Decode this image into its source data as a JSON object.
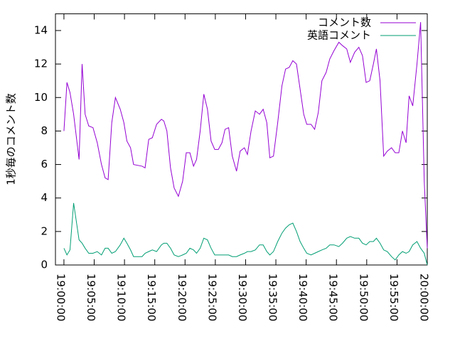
{
  "chart_data": {
    "type": "line",
    "ylabel": "1秒毎のコメント数",
    "x": [
      "19:00:00",
      "19:00:30",
      "19:01:00",
      "19:01:36",
      "19:02:30",
      "19:03:00",
      "19:03:30",
      "19:04:06",
      "19:04:48",
      "19:05:30",
      "19:06:12",
      "19:06:48",
      "19:07:18",
      "19:07:54",
      "19:08:30",
      "19:09:18",
      "19:09:54",
      "19:10:24",
      "19:11:00",
      "19:11:30",
      "19:12:54",
      "19:13:24",
      "19:14:00",
      "19:14:36",
      "19:15:18",
      "19:16:06",
      "19:16:30",
      "19:17:00",
      "19:17:36",
      "19:18:12",
      "19:18:54",
      "19:19:36",
      "19:20:12",
      "19:20:48",
      "19:21:24",
      "19:21:54",
      "19:22:30",
      "19:23:06",
      "19:23:42",
      "19:24:18",
      "19:24:54",
      "19:25:30",
      "19:26:06",
      "19:26:36",
      "19:27:12",
      "19:27:48",
      "19:28:30",
      "19:29:06",
      "19:29:48",
      "19:30:18",
      "19:30:54",
      "19:31:36",
      "19:32:18",
      "19:32:54",
      "19:33:30",
      "19:34:00",
      "19:34:36",
      "19:35:18",
      "19:36:00",
      "19:36:36",
      "19:37:12",
      "19:37:48",
      "19:38:24",
      "19:39:00",
      "19:39:36",
      "19:40:06",
      "19:40:48",
      "19:41:24",
      "19:42:00",
      "19:42:36",
      "19:43:18",
      "19:43:54",
      "19:44:36",
      "19:45:24",
      "19:46:00",
      "19:46:42",
      "19:47:18",
      "19:48:00",
      "19:48:42",
      "19:49:18",
      "19:49:54",
      "19:50:30",
      "19:51:06",
      "19:51:36",
      "19:52:12",
      "19:52:48",
      "19:53:24",
      "19:54:06",
      "19:54:42",
      "19:55:18",
      "19:55:54",
      "19:56:30",
      "19:57:00",
      "19:57:36",
      "19:58:18",
      "19:58:54",
      "19:59:30",
      "20:00:00"
    ],
    "series": [
      {
        "name": "コメント数",
        "color": "#9400d3",
        "values": [
          8.0,
          10.9,
          10.3,
          9.0,
          6.3,
          12.0,
          9.0,
          8.3,
          8.2,
          7.3,
          6.0,
          5.2,
          5.1,
          8.5,
          10.0,
          9.3,
          8.5,
          7.4,
          7.0,
          6.0,
          5.9,
          5.8,
          7.5,
          7.6,
          8.4,
          8.7,
          8.6,
          8.0,
          5.8,
          4.6,
          4.1,
          5.0,
          6.7,
          6.7,
          5.9,
          6.3,
          8.0,
          10.2,
          9.3,
          7.4,
          6.9,
          6.9,
          7.3,
          8.1,
          8.2,
          6.5,
          5.6,
          6.8,
          7.0,
          6.6,
          8.0,
          9.2,
          9.0,
          9.3,
          8.5,
          6.4,
          6.5,
          8.5,
          10.7,
          11.7,
          11.8,
          12.2,
          12.0,
          10.5,
          9.0,
          8.4,
          8.4,
          8.1,
          9.1,
          11.0,
          11.5,
          12.3,
          12.8,
          13.3,
          13.1,
          12.9,
          12.1,
          12.7,
          13.0,
          12.5,
          10.9,
          11.0,
          12.0,
          12.9,
          11.0,
          6.5,
          6.8,
          7.0,
          6.7,
          6.7,
          8.0,
          7.3,
          10.1,
          9.5,
          12.0,
          14.5,
          5.0,
          1.0
        ]
      },
      {
        "name": "英語コメント",
        "color": "#009e73",
        "values": [
          1.0,
          0.6,
          0.9,
          3.7,
          1.5,
          1.3,
          1.0,
          0.7,
          0.7,
          0.8,
          0.6,
          1.0,
          1.0,
          0.7,
          0.8,
          1.2,
          1.6,
          1.3,
          0.9,
          0.5,
          0.5,
          0.7,
          0.8,
          0.9,
          0.8,
          1.2,
          1.3,
          1.3,
          1.0,
          0.6,
          0.5,
          0.6,
          0.7,
          1.0,
          0.9,
          0.7,
          1.0,
          1.6,
          1.5,
          1.0,
          0.6,
          0.6,
          0.6,
          0.6,
          0.6,
          0.5,
          0.5,
          0.6,
          0.7,
          0.8,
          0.8,
          0.9,
          1.2,
          1.2,
          0.8,
          0.6,
          0.8,
          1.4,
          1.9,
          2.2,
          2.4,
          2.5,
          2.0,
          1.4,
          1.0,
          0.7,
          0.6,
          0.7,
          0.8,
          0.9,
          1.0,
          1.2,
          1.2,
          1.1,
          1.3,
          1.6,
          1.7,
          1.6,
          1.6,
          1.3,
          1.2,
          1.4,
          1.4,
          1.6,
          1.3,
          0.9,
          0.8,
          0.5,
          0.3,
          0.6,
          0.8,
          0.7,
          0.8,
          1.2,
          1.4,
          1.0,
          0.7,
          0.0
        ]
      }
    ],
    "xlim": [
      "18:58:36",
      "20:00:00"
    ],
    "xticks": [
      "19:00:00",
      "19:05:00",
      "19:10:00",
      "19:15:00",
      "19:20:00",
      "19:25:00",
      "19:30:00",
      "19:35:00",
      "19:40:00",
      "19:45:00",
      "19:50:00",
      "19:55:00",
      "20:00:00"
    ],
    "ylim": [
      0,
      15
    ],
    "yticks": [
      0,
      2,
      4,
      6,
      8,
      10,
      12,
      14
    ],
    "legend": "top-right"
  }
}
